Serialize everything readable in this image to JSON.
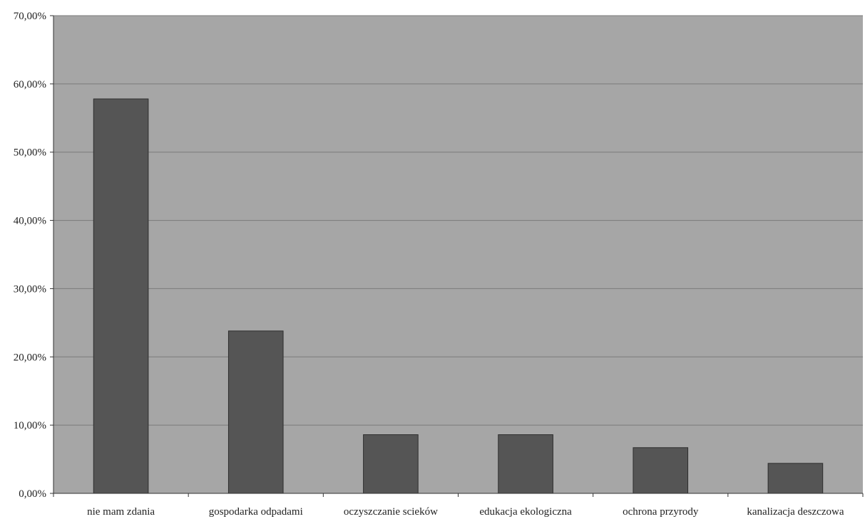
{
  "chart_data": {
    "type": "bar",
    "title": "",
    "xlabel": "",
    "ylabel": "",
    "categories": [
      "nie mam zdania",
      "gospodarka odpadami",
      "oczyszczanie scieków",
      "edukacja ekologiczna",
      "ochrona przyrody",
      "kanalizacja deszczowa"
    ],
    "values": [
      57.8,
      23.8,
      8.6,
      8.6,
      6.7,
      4.4
    ],
    "ylim": [
      0,
      70
    ],
    "yticks": [
      0,
      10,
      20,
      30,
      40,
      50,
      60,
      70
    ],
    "ytick_labels": [
      "0,00%",
      "10,00%",
      "20,00%",
      "30,00%",
      "40,00%",
      "50,00%",
      "60,00%",
      "70,00%"
    ],
    "grid": true,
    "legend": "none"
  },
  "colors": {
    "plot_background": "#a6a6a6",
    "bar_fill": "#555555",
    "bar_stroke": "#2e2e2e",
    "gridline": "#7a7a7a",
    "axis": "#333333",
    "text": "#222222"
  }
}
